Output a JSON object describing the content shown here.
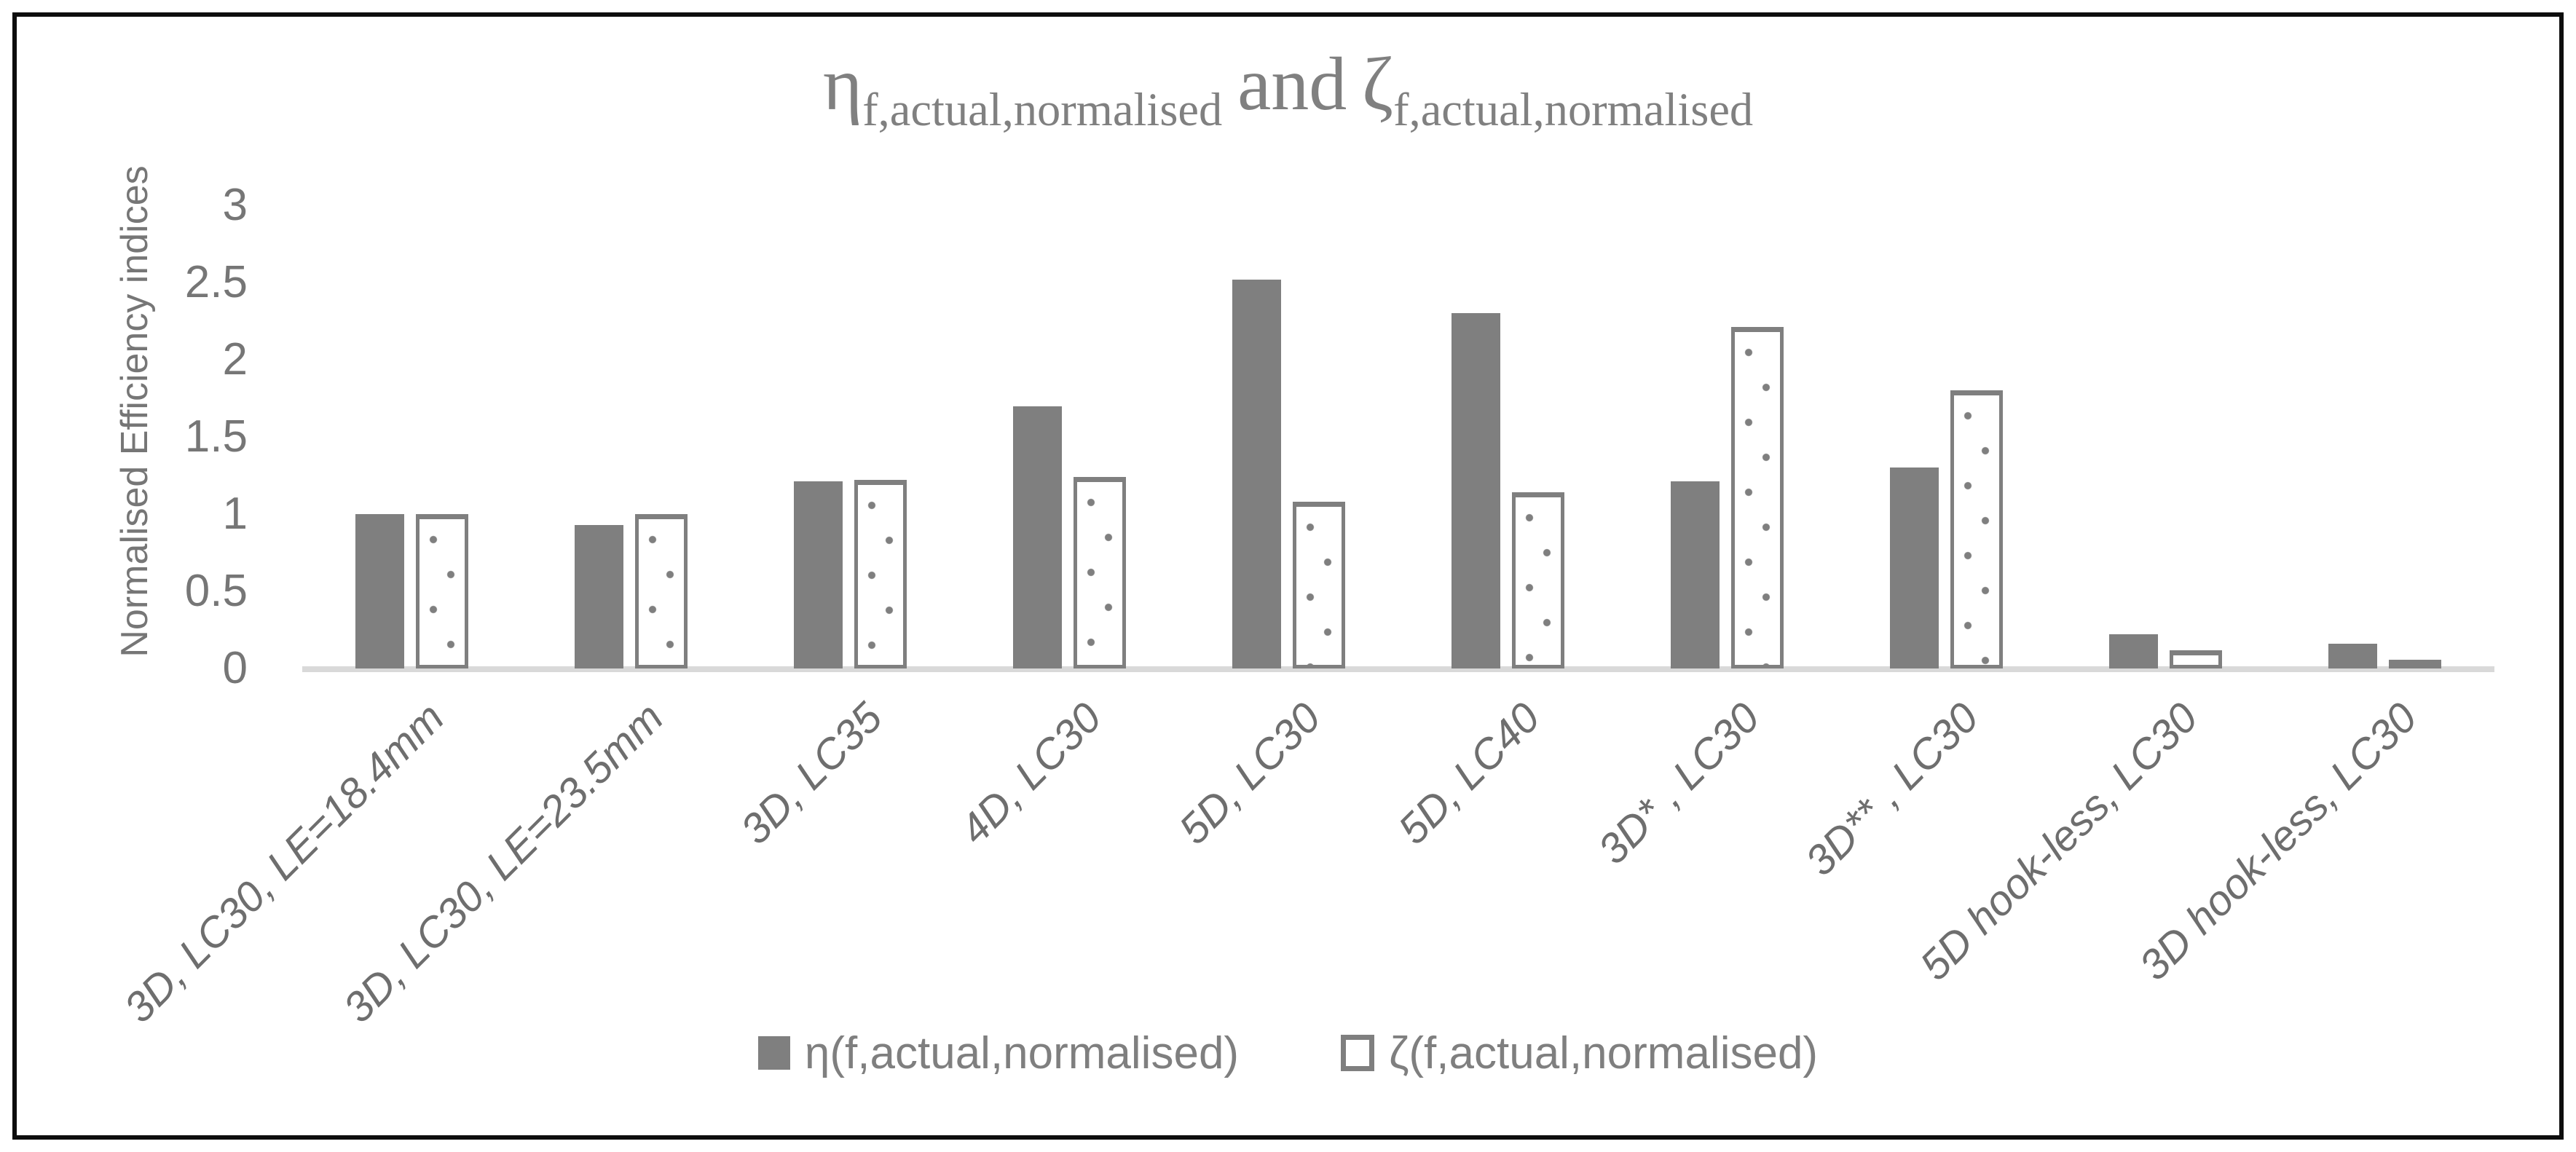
{
  "chart_data": {
    "type": "bar",
    "title_parts": {
      "eta_symbol": "η",
      "eta_sub": "f,actual,normalised",
      "connector": "and",
      "zeta_symbol": "ζ",
      "zeta_sub": "f,actual,normalised"
    },
    "ylabel": "Normalised Efficiency indices",
    "ylim": [
      0,
      3
    ],
    "yticks": [
      "3",
      "2.5",
      "2",
      "1.5",
      "1",
      "0.5",
      "0"
    ],
    "grid": false,
    "legend_position": "bottom-center",
    "categories": [
      "3D, LC30, LE=18.4mm",
      "3D, LC30, LE=23.5mm",
      "3D, LC35",
      "4D, LC30",
      "5D, LC30",
      "5D, LC40",
      "3D* , LC30",
      "3D** , LC30",
      "5D hook-less, LC30",
      "3D hook-less, LC30"
    ],
    "series": [
      {
        "name": "η(f,actual,normalised)",
        "style": "solid",
        "color": "#7f7f7f",
        "values": [
          1.0,
          0.93,
          1.21,
          1.7,
          2.52,
          2.3,
          1.21,
          1.3,
          0.22,
          0.16
        ]
      },
      {
        "name": "ζ(f,actual,normalised)",
        "style": "dotted-outline",
        "color": "#ffffff",
        "border_color": "#7f7f7f",
        "values": [
          1.0,
          1.0,
          1.22,
          1.24,
          1.08,
          1.14,
          2.21,
          1.8,
          0.12,
          0.04
        ]
      }
    ],
    "colors": {
      "axis_line": "#d9d9d9",
      "axis_text": "#767676",
      "title_text": "#808080",
      "frame": "#0d0d0d"
    }
  }
}
